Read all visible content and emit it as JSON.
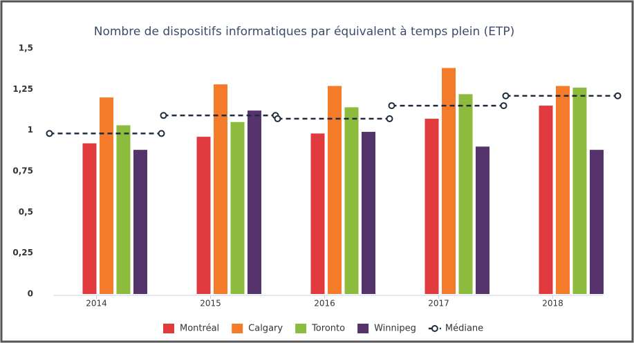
{
  "chart_data": {
    "type": "bar",
    "title": "Nombre de dispositifs informatiques par équivalent à temps plein (ETP)",
    "categories": [
      "2014",
      "2015",
      "2016",
      "2017",
      "2018"
    ],
    "series": [
      {
        "name": "Montréal",
        "color": "#e03a3e",
        "values": [
          0.92,
          0.96,
          0.98,
          1.07,
          1.15
        ]
      },
      {
        "name": "Calgary",
        "color": "#f47b2a",
        "values": [
          1.2,
          1.28,
          1.27,
          1.38,
          1.27
        ]
      },
      {
        "name": "Toronto",
        "color": "#8dbb3d",
        "values": [
          1.03,
          1.05,
          1.14,
          1.22,
          1.26
        ]
      },
      {
        "name": "Winnipeg",
        "color": "#55336b",
        "values": [
          0.88,
          1.12,
          0.99,
          0.9,
          0.88
        ]
      },
      {
        "name": "Médiane",
        "color": "#1e2b3c",
        "kind": "dashed-line",
        "values": [
          0.98,
          1.09,
          1.07,
          1.15,
          1.21
        ]
      }
    ],
    "ylim": [
      0,
      1.5
    ],
    "yticks": [
      0,
      {
        "value": 0.25,
        "label": "0,25"
      },
      {
        "value": 0.5,
        "label": "0,5"
      },
      {
        "value": 0.75,
        "label": "0,75"
      },
      1,
      {
        "value": 1.25,
        "label": "1,25"
      },
      {
        "value": 1.5,
        "label": "1,5"
      }
    ],
    "grid": false,
    "legend": "bottom"
  }
}
